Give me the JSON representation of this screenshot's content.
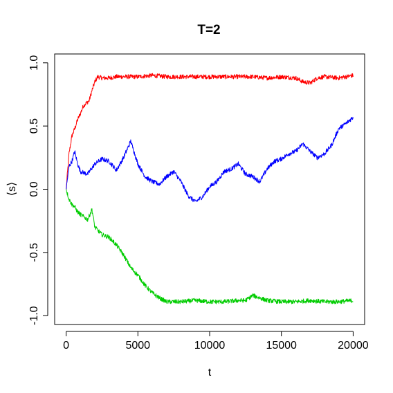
{
  "chart_data": {
    "type": "line",
    "title": "T=2",
    "xlabel": "t",
    "ylabel": "⟨s⟩",
    "xlim": [
      -800,
      20800
    ],
    "ylim": [
      -1.07,
      1.07
    ],
    "xticks": [
      0,
      5000,
      10000,
      15000,
      20000
    ],
    "xtick_labels": [
      "0",
      "5000",
      "10000",
      "15000",
      "20000"
    ],
    "yticks": [
      -1.0,
      -0.5,
      0.0,
      0.5,
      1.0
    ],
    "ytick_labels": [
      "-1.0",
      "-0.5",
      "0.0",
      "0.5",
      "1.0"
    ],
    "grid": false,
    "legend": "none",
    "series": [
      {
        "color": "#ff0000",
        "x": [
          0,
          200,
          400,
          600,
          800,
          1000,
          1200,
          1400,
          1600,
          1800,
          2000,
          2200,
          2500,
          3000,
          3500,
          4000,
          5000,
          6000,
          7000,
          8000,
          9000,
          10000,
          11000,
          12000,
          13000,
          14000,
          15000,
          16000,
          16500,
          17000,
          17500,
          18000,
          19000,
          20000
        ],
        "y": [
          0.0,
          0.28,
          0.42,
          0.48,
          0.55,
          0.6,
          0.66,
          0.68,
          0.7,
          0.78,
          0.85,
          0.89,
          0.88,
          0.88,
          0.89,
          0.89,
          0.89,
          0.9,
          0.89,
          0.89,
          0.89,
          0.89,
          0.89,
          0.89,
          0.89,
          0.88,
          0.89,
          0.88,
          0.85,
          0.84,
          0.88,
          0.89,
          0.88,
          0.9
        ]
      },
      {
        "color": "#0000ff",
        "x": [
          0,
          200,
          400,
          600,
          800,
          1000,
          1500,
          2000,
          2500,
          3000,
          3500,
          4000,
          4500,
          5000,
          5500,
          6000,
          6500,
          7000,
          7500,
          8000,
          8500,
          9000,
          9500,
          10000,
          10500,
          11000,
          11500,
          12000,
          12500,
          13000,
          13500,
          14000,
          14500,
          15000,
          15500,
          16000,
          16500,
          17000,
          17500,
          18000,
          18500,
          19000,
          19500,
          20000
        ],
        "y": [
          0.0,
          0.18,
          0.22,
          0.3,
          0.2,
          0.14,
          0.12,
          0.2,
          0.24,
          0.22,
          0.15,
          0.25,
          0.38,
          0.2,
          0.1,
          0.06,
          0.04,
          0.1,
          0.14,
          0.06,
          -0.05,
          -0.1,
          -0.06,
          0.02,
          0.06,
          0.14,
          0.16,
          0.2,
          0.12,
          0.1,
          0.06,
          0.16,
          0.22,
          0.24,
          0.28,
          0.3,
          0.36,
          0.3,
          0.25,
          0.28,
          0.35,
          0.48,
          0.52,
          0.57
        ]
      },
      {
        "color": "#00cc00",
        "x": [
          0,
          200,
          400,
          600,
          800,
          1000,
          1500,
          1800,
          2000,
          2500,
          3000,
          3500,
          4000,
          4500,
          5000,
          5500,
          6000,
          6500,
          7000,
          8000,
          9000,
          10000,
          11000,
          12000,
          12500,
          13000,
          14000,
          15000,
          16000,
          17000,
          18000,
          19000,
          20000
        ],
        "y": [
          0.0,
          -0.08,
          -0.12,
          -0.14,
          -0.18,
          -0.2,
          -0.24,
          -0.16,
          -0.3,
          -0.36,
          -0.38,
          -0.44,
          -0.52,
          -0.62,
          -0.68,
          -0.76,
          -0.82,
          -0.86,
          -0.89,
          -0.89,
          -0.88,
          -0.89,
          -0.89,
          -0.88,
          -0.88,
          -0.84,
          -0.88,
          -0.89,
          -0.89,
          -0.88,
          -0.89,
          -0.89,
          -0.88
        ]
      }
    ]
  }
}
